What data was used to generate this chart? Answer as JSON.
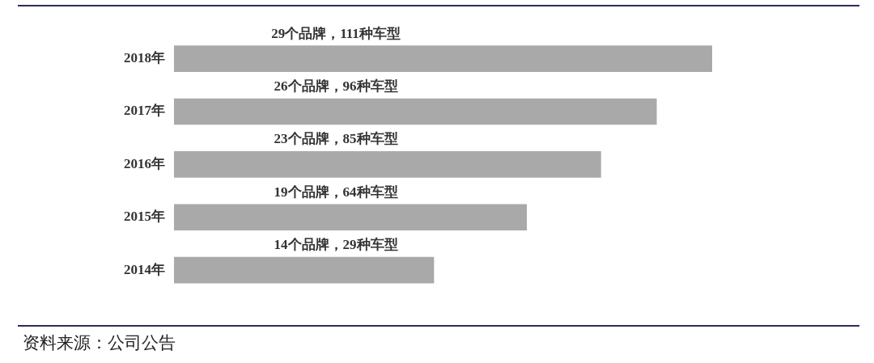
{
  "chart_data": {
    "type": "bar",
    "orientation": "horizontal",
    "xlim": [
      0,
      29
    ],
    "tick_labels": "y",
    "categories": [
      "2018年",
      "2017年",
      "2016年",
      "2015年",
      "2014年"
    ],
    "values": [
      29,
      26,
      23,
      19,
      14
    ],
    "value_labels": [
      "29个品牌，111种车型",
      "26个品牌，96种车型",
      "23个品牌，85种车型",
      "19个品牌，64种车型",
      "14个品牌，29种车型"
    ],
    "color": "#a9a9a9",
    "annotations": [
      "资料来源：公司公告"
    ]
  }
}
